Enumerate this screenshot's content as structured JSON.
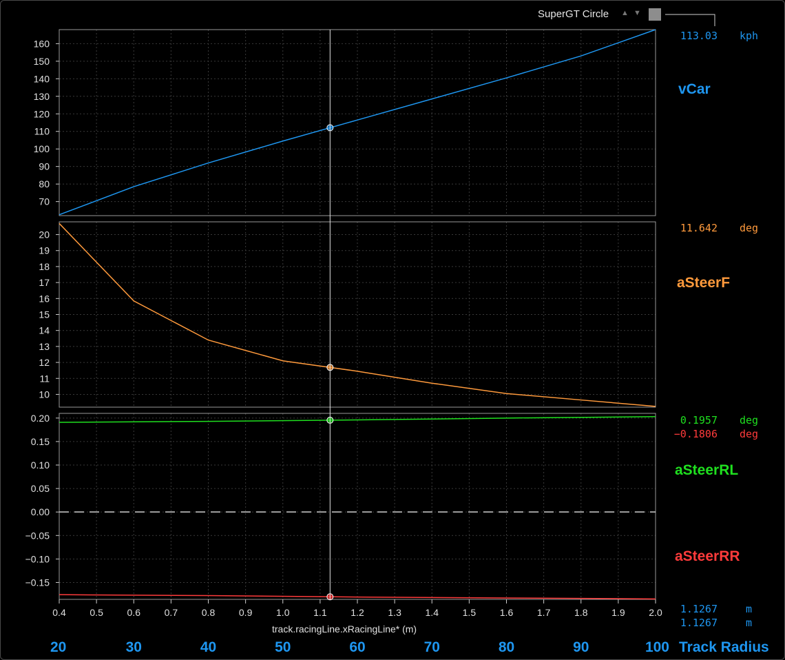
{
  "window": {
    "title": "SuperGT Circle"
  },
  "cursor": {
    "x": 1.1267
  },
  "readouts": {
    "vcar": {
      "value": "113.03",
      "unit": "kph",
      "name": "vCar",
      "color": "#1e96f0"
    },
    "asteerf": {
      "value": "11.642",
      "unit": "deg",
      "name": "aSteerF",
      "color": "#ff9a3c"
    },
    "asteerrl": {
      "value": "0.1957",
      "unit": "deg",
      "name": "aSteerRL",
      "color": "#1fe01f"
    },
    "asteerrr": {
      "value": "−0.1806",
      "unit": "deg",
      "name": "aSteerRR",
      "color": "#ff3b3b"
    },
    "x1": {
      "value": "1.1267",
      "unit": "m"
    },
    "x2": {
      "value": "1.1267",
      "unit": "m"
    }
  },
  "secondary_axis": {
    "label": "Track Radius",
    "ticks": [
      "20",
      "30",
      "40",
      "50",
      "60",
      "70",
      "80",
      "90",
      "100"
    ]
  },
  "chart_data": [
    {
      "type": "line",
      "xlabel": "track.racingLine.xRacingLine* (m)",
      "xlim": [
        0.4,
        2.0
      ],
      "ylim": [
        62,
        168
      ],
      "yticks": [
        70,
        80,
        90,
        100,
        110,
        120,
        130,
        140,
        150,
        160
      ],
      "grid": true,
      "series": [
        {
          "name": "vCar",
          "color": "#1e96f0",
          "x": [
            0.4,
            0.6,
            0.8,
            1.0,
            1.2,
            1.4,
            1.6,
            1.8,
            2.0
          ],
          "values": [
            62.5,
            78.5,
            92.0,
            104.5,
            116.5,
            128.5,
            140.5,
            153.0,
            168.0
          ]
        }
      ]
    },
    {
      "type": "line",
      "xlim": [
        0.4,
        2.0
      ],
      "ylim": [
        9.2,
        20.8
      ],
      "yticks": [
        10,
        11,
        12,
        13,
        14,
        15,
        16,
        17,
        18,
        19,
        20
      ],
      "grid": true,
      "series": [
        {
          "name": "aSteerF",
          "color": "#ff9a3c",
          "x": [
            0.4,
            0.6,
            0.8,
            1.0,
            1.2,
            1.4,
            1.6,
            1.8,
            2.0
          ],
          "values": [
            20.7,
            15.85,
            13.4,
            12.1,
            11.45,
            10.7,
            10.05,
            9.65,
            9.25
          ]
        }
      ]
    },
    {
      "type": "line",
      "xlim": [
        0.4,
        2.0
      ],
      "ylim": [
        -0.186,
        0.21
      ],
      "yticks": [
        -0.15,
        -0.1,
        -0.05,
        0.0,
        0.05,
        0.1,
        0.15,
        0.2
      ],
      "grid": true,
      "series": [
        {
          "name": "aSteerRL",
          "color": "#1fe01f",
          "x": [
            0.4,
            0.8,
            1.2,
            1.6,
            2.0
          ],
          "values": [
            0.191,
            0.193,
            0.196,
            0.2,
            0.203
          ]
        },
        {
          "name": "aSteerRR",
          "color": "#ff3b3b",
          "x": [
            0.4,
            0.8,
            1.2,
            1.6,
            2.0
          ],
          "values": [
            -0.176,
            -0.178,
            -0.181,
            -0.183,
            -0.185
          ]
        }
      ]
    }
  ],
  "x_ticks": [
    "0.4",
    "0.5",
    "0.6",
    "0.7",
    "0.8",
    "0.9",
    "1.0",
    "1.1",
    "1.2",
    "1.3",
    "1.4",
    "1.5",
    "1.6",
    "1.7",
    "1.8",
    "1.9",
    "2.0"
  ]
}
